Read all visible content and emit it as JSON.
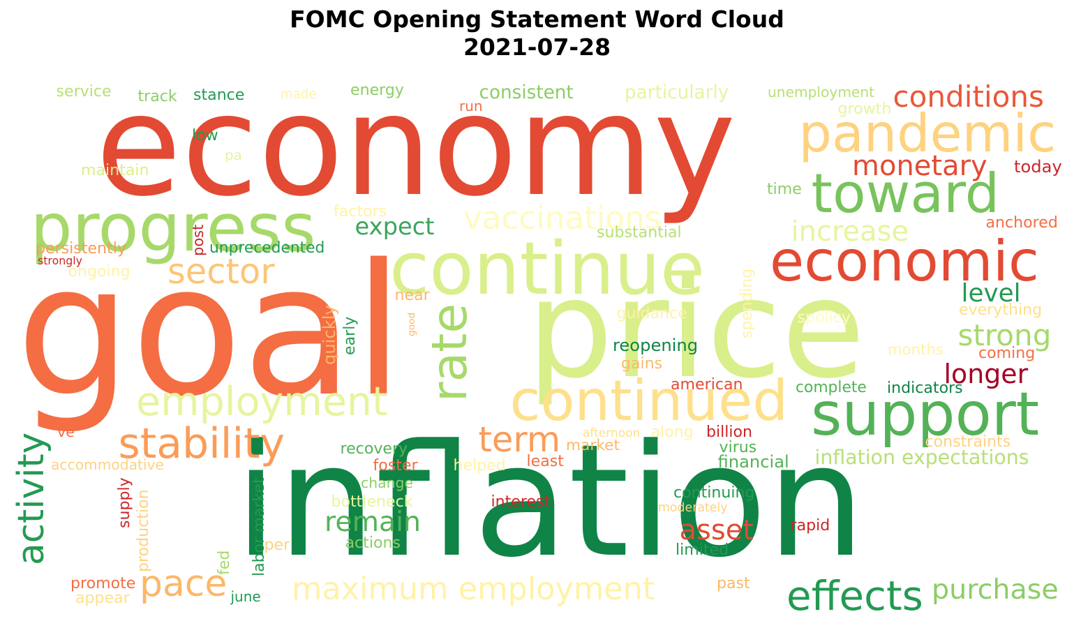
{
  "title_line1": "FOMC Opening Statement Word Cloud",
  "title_line2": "2021-07-28",
  "words": [
    {
      "text": "economy",
      "color": "#e34a33"
    },
    {
      "text": "inflation",
      "color": "#0f8446"
    },
    {
      "text": "goal",
      "color": "#f46d43"
    },
    {
      "text": "price",
      "color": "#d9ef8b"
    },
    {
      "text": "progress",
      "color": "#a6d96a"
    },
    {
      "text": "continue",
      "color": "#d9ef8b"
    },
    {
      "text": "pandemic",
      "color": "#fed27f"
    },
    {
      "text": "toward",
      "color": "#78c35c"
    },
    {
      "text": "economic",
      "color": "#e34a33"
    },
    {
      "text": "support",
      "color": "#53b257"
    },
    {
      "text": "continued",
      "color": "#fee08b"
    },
    {
      "text": "employment",
      "color": "#e6f59d"
    },
    {
      "text": "rate",
      "color": "#a6d96a"
    },
    {
      "text": "stability",
      "color": "#fa9c58"
    },
    {
      "text": "maximum employment",
      "color": "#fff2a8"
    },
    {
      "text": "effects",
      "color": "#239a52"
    },
    {
      "text": "activity",
      "color": "#239a52"
    },
    {
      "text": "sector",
      "color": "#fdc575"
    },
    {
      "text": "vaccinations",
      "color": "#fffbbf"
    },
    {
      "text": "monetary",
      "color": "#e34a33"
    },
    {
      "text": "conditions",
      "color": "#ea5739"
    },
    {
      "text": "increase",
      "color": "#e6f59d"
    },
    {
      "text": "pace",
      "color": "#fdb768"
    },
    {
      "text": "term",
      "color": "#fa9c58"
    },
    {
      "text": "strong",
      "color": "#a6d96a"
    },
    {
      "text": "longer",
      "color": "#a50026"
    },
    {
      "text": "level",
      "color": "#239a52"
    },
    {
      "text": "asset",
      "color": "#e34a33"
    },
    {
      "text": "remain",
      "color": "#53b257"
    },
    {
      "text": "purchase",
      "color": "#8ccd66"
    },
    {
      "text": "expect",
      "color": "#3ba55c"
    },
    {
      "text": "inflation expectations",
      "color": "#b7e075"
    },
    {
      "text": "consistent",
      "color": "#8ccd66"
    },
    {
      "text": "particularly",
      "color": "#e6f59d"
    },
    {
      "text": "unemployment",
      "color": "#b7e075"
    },
    {
      "text": "service",
      "color": "#b7e075"
    },
    {
      "text": "track",
      "color": "#8ccd66"
    },
    {
      "text": "stance",
      "color": "#239a52"
    },
    {
      "text": "made",
      "color": "#fff2a8"
    },
    {
      "text": "energy",
      "color": "#8ccd66"
    },
    {
      "text": "run",
      "color": "#f46d43"
    },
    {
      "text": "growth",
      "color": "#e6f59d"
    },
    {
      "text": "low",
      "color": "#239a52"
    },
    {
      "text": "pa",
      "color": "#e6f59d"
    },
    {
      "text": "maintain",
      "color": "#d9ef8b"
    },
    {
      "text": "today",
      "color": "#cc2627"
    },
    {
      "text": "time",
      "color": "#8ccd66"
    },
    {
      "text": "factors",
      "color": "#fff2a8"
    },
    {
      "text": "substantial",
      "color": "#b7e075"
    },
    {
      "text": "anchored",
      "color": "#f46d43"
    },
    {
      "text": "persistently",
      "color": "#fa9c58"
    },
    {
      "text": "post",
      "color": "#cc2627"
    },
    {
      "text": "unprecedented",
      "color": "#239a52"
    },
    {
      "text": "strongly",
      "color": "#cc2627"
    },
    {
      "text": "ongoing",
      "color": "#fff2a8"
    },
    {
      "text": "spending",
      "color": "#fff2a8"
    },
    {
      "text": "near",
      "color": "#fdb768"
    },
    {
      "text": "everything",
      "color": "#fee08b"
    },
    {
      "text": "guidance",
      "color": "#fff2a8"
    },
    {
      "text": "spolicy",
      "color": "#fffbbf"
    },
    {
      "text": "quickly",
      "color": "#fdb768"
    },
    {
      "text": "early",
      "color": "#239a52"
    },
    {
      "text": "good",
      "color": "#fdb768"
    },
    {
      "text": "reopening",
      "color": "#0f8446"
    },
    {
      "text": "months",
      "color": "#fff2a8"
    },
    {
      "text": "coming",
      "color": "#f46d43"
    },
    {
      "text": "gains",
      "color": "#fdb768"
    },
    {
      "text": "american",
      "color": "#e34a33"
    },
    {
      "text": "complete",
      "color": "#53b257"
    },
    {
      "text": "indicators",
      "color": "#0f8446"
    },
    {
      "text": "ve",
      "color": "#f46d43"
    },
    {
      "text": "afternoon",
      "color": "#fee08b"
    },
    {
      "text": "along",
      "color": "#fff2a8"
    },
    {
      "text": "billion",
      "color": "#cc2627"
    },
    {
      "text": "constraints",
      "color": "#fed27f"
    },
    {
      "text": "market",
      "color": "#fdb768"
    },
    {
      "text": "virus",
      "color": "#53b257"
    },
    {
      "text": "recovery",
      "color": "#53b257"
    },
    {
      "text": "accommodative",
      "color": "#fed27f"
    },
    {
      "text": "foster",
      "color": "#f46d43"
    },
    {
      "text": "helped",
      "color": "#fff2a8"
    },
    {
      "text": "least",
      "color": "#f46d43"
    },
    {
      "text": "financial",
      "color": "#53b257"
    },
    {
      "text": "change",
      "color": "#8ccd66"
    },
    {
      "text": "supply",
      "color": "#cc2627"
    },
    {
      "text": "production",
      "color": "#fed27f"
    },
    {
      "text": "labor market",
      "color": "#239a52"
    },
    {
      "text": "bottleneck",
      "color": "#e6f59d"
    },
    {
      "text": "continuing",
      "color": "#239a52"
    },
    {
      "text": "moderately",
      "color": "#fed27f"
    },
    {
      "text": "interest",
      "color": "#cc2627"
    },
    {
      "text": "rapid",
      "color": "#cc2627"
    },
    {
      "text": "actions",
      "color": "#8ccd66"
    },
    {
      "text": "per",
      "color": "#fed27f"
    },
    {
      "text": "fed",
      "color": "#a6d96a"
    },
    {
      "text": "limited",
      "color": "#239a52"
    },
    {
      "text": "promote",
      "color": "#f46d43"
    },
    {
      "text": "appear",
      "color": "#fee08b"
    },
    {
      "text": "june",
      "color": "#239a52"
    },
    {
      "text": "past",
      "color": "#fdb768"
    }
  ]
}
